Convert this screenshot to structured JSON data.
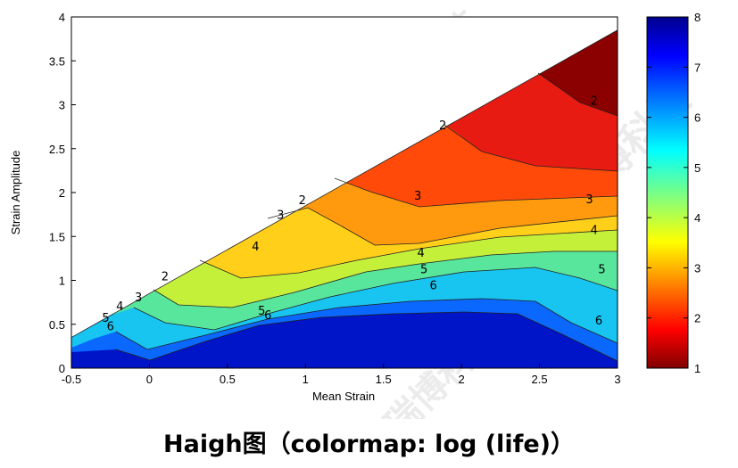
{
  "caption": "Haigh图（colormap: log (life)）",
  "watermark": "易瑞博科技",
  "chart_data": {
    "type": "contour",
    "xlabel": "Mean Strain",
    "ylabel": "Strain Amplitude",
    "xlim": [
      -0.5,
      3
    ],
    "ylim": [
      0,
      4
    ],
    "xticks": [
      -0.5,
      0,
      0.5,
      1,
      1.5,
      2,
      2.5,
      3
    ],
    "yticks": [
      0,
      0.5,
      1,
      1.5,
      2,
      2.5,
      3,
      3.5,
      4
    ],
    "colorbar": {
      "min": 1,
      "max": 8,
      "ticks": [
        1,
        2,
        3,
        4,
        5,
        6,
        7,
        8
      ],
      "colormap": "jet"
    },
    "region_boundary": [
      [
        -0.5,
        0.35
      ],
      [
        3,
        3.85
      ]
    ],
    "contour_labels": [
      {
        "level": "2",
        "x": 2.85,
        "y": 3.0
      },
      {
        "level": "2",
        "x": 1.88,
        "y": 2.72
      },
      {
        "level": "2",
        "x": 0.98,
        "y": 1.87
      },
      {
        "level": "2",
        "x": 0.1,
        "y": 1.0
      },
      {
        "level": "3",
        "x": 1.72,
        "y": 1.92
      },
      {
        "level": "3",
        "x": 2.82,
        "y": 1.88
      },
      {
        "level": "3",
        "x": 0.84,
        "y": 1.7
      },
      {
        "level": "3",
        "x": -0.07,
        "y": 0.76
      },
      {
        "level": "4",
        "x": 0.68,
        "y": 1.34
      },
      {
        "level": "4",
        "x": 1.74,
        "y": 1.27
      },
      {
        "level": "4",
        "x": 2.85,
        "y": 1.53
      },
      {
        "level": "4",
        "x": -0.19,
        "y": 0.66
      },
      {
        "level": "5",
        "x": 1.76,
        "y": 1.08
      },
      {
        "level": "5",
        "x": 2.9,
        "y": 1.08
      },
      {
        "level": "5",
        "x": 0.72,
        "y": 0.61
      },
      {
        "level": "5",
        "x": -0.28,
        "y": 0.53
      },
      {
        "level": "6",
        "x": 1.82,
        "y": 0.9
      },
      {
        "level": "6",
        "x": 2.88,
        "y": 0.5
      },
      {
        "level": "6",
        "x": 0.76,
        "y": 0.56
      },
      {
        "level": "6",
        "x": -0.25,
        "y": 0.43
      }
    ]
  }
}
